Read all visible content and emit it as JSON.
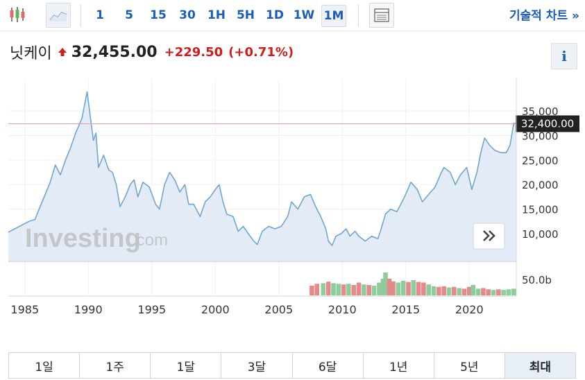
{
  "toolbar": {
    "intervals": [
      {
        "label": "1",
        "active": false
      },
      {
        "label": "5",
        "active": false
      },
      {
        "label": "15",
        "active": false
      },
      {
        "label": "30",
        "active": false
      },
      {
        "label": "1H",
        "active": false
      },
      {
        "label": "5H",
        "active": false
      },
      {
        "label": "1D",
        "active": false
      },
      {
        "label": "1W",
        "active": false
      },
      {
        "label": "1M",
        "active": true
      }
    ],
    "icons": [
      "candlestick-icon",
      "area-chart-icon",
      "table-icon"
    ],
    "technical_chart_label": "기술적 차트 »"
  },
  "quote": {
    "name": "닛케이",
    "direction": "up",
    "price": "32,455.00",
    "change": "+229.50",
    "change_pct": "(+0.71%)",
    "up_color": "#d01c1c",
    "info_label": "i"
  },
  "watermark": {
    "main": "Investing",
    "suffix": ".com"
  },
  "range": {
    "buttons": [
      {
        "label": "1일",
        "active": false
      },
      {
        "label": "1주",
        "active": false
      },
      {
        "label": "1달",
        "active": false
      },
      {
        "label": "3달",
        "active": false
      },
      {
        "label": "6달",
        "active": false
      },
      {
        "label": "1년",
        "active": false
      },
      {
        "label": "5년",
        "active": false
      },
      {
        "label": "최대",
        "active": true
      }
    ]
  },
  "chart_data": {
    "type": "area",
    "title": "",
    "xlabel": "",
    "ylabel": "",
    "x_ticks": [
      "1985",
      "1990",
      "1995",
      "2000",
      "2005",
      "2010",
      "2015",
      "2020"
    ],
    "y_ticks": [
      "10,000",
      "15,000",
      "20,000",
      "25,000",
      "30,000",
      "35,000"
    ],
    "xlim": [
      1983.7,
      2023.7
    ],
    "ylim": [
      4500,
      41500
    ],
    "current_price_label": "32,400.00",
    "current_price": 32400,
    "line_color": "#6fa5d2",
    "fill_color": "#e3ecf6",
    "price_line_color": "#e89aa3",
    "series": [
      {
        "values": [
          [
            1983.7,
            10300
          ],
          [
            1984.2,
            11000
          ],
          [
            1984.8,
            11800
          ],
          [
            1985.3,
            12500
          ],
          [
            1985.8,
            12900
          ],
          [
            1986.2,
            15500
          ],
          [
            1986.6,
            18000
          ],
          [
            1987.0,
            20500
          ],
          [
            1987.4,
            24000
          ],
          [
            1987.8,
            22000
          ],
          [
            1988.2,
            25000
          ],
          [
            1988.6,
            27500
          ],
          [
            1989.0,
            30500
          ],
          [
            1989.5,
            33500
          ],
          [
            1989.9,
            38900
          ],
          [
            1990.2,
            33000
          ],
          [
            1990.4,
            29000
          ],
          [
            1990.6,
            30500
          ],
          [
            1990.8,
            23500
          ],
          [
            1991.2,
            26000
          ],
          [
            1991.6,
            23000
          ],
          [
            1991.9,
            22500
          ],
          [
            1992.2,
            20000
          ],
          [
            1992.5,
            15500
          ],
          [
            1992.9,
            17500
          ],
          [
            1993.3,
            20000
          ],
          [
            1993.6,
            21000
          ],
          [
            1993.9,
            17500
          ],
          [
            1994.3,
            20500
          ],
          [
            1994.8,
            19500
          ],
          [
            1995.3,
            16000
          ],
          [
            1995.6,
            15000
          ],
          [
            1996.0,
            20000
          ],
          [
            1996.4,
            22500
          ],
          [
            1996.8,
            21000
          ],
          [
            1997.2,
            18500
          ],
          [
            1997.6,
            20000
          ],
          [
            1997.9,
            16000
          ],
          [
            1998.3,
            16000
          ],
          [
            1998.8,
            13500
          ],
          [
            1999.2,
            16500
          ],
          [
            1999.6,
            17500
          ],
          [
            2000.0,
            19000
          ],
          [
            2000.3,
            20000
          ],
          [
            2000.6,
            16500
          ],
          [
            2000.9,
            14000
          ],
          [
            2001.4,
            13500
          ],
          [
            2001.8,
            10500
          ],
          [
            2002.2,
            11500
          ],
          [
            2002.6,
            10000
          ],
          [
            2003.0,
            8600
          ],
          [
            2003.3,
            7800
          ],
          [
            2003.7,
            10500
          ],
          [
            2004.2,
            11500
          ],
          [
            2004.7,
            11000
          ],
          [
            2005.2,
            11500
          ],
          [
            2005.7,
            13500
          ],
          [
            2006.0,
            16500
          ],
          [
            2006.5,
            15000
          ],
          [
            2007.0,
            17500
          ],
          [
            2007.5,
            18000
          ],
          [
            2007.9,
            15500
          ],
          [
            2008.3,
            13500
          ],
          [
            2008.7,
            11000
          ],
          [
            2008.9,
            8500
          ],
          [
            2009.2,
            7600
          ],
          [
            2009.5,
            9500
          ],
          [
            2009.9,
            10000
          ],
          [
            2010.3,
            11000
          ],
          [
            2010.6,
            9500
          ],
          [
            2011.0,
            10500
          ],
          [
            2011.3,
            9500
          ],
          [
            2011.8,
            8500
          ],
          [
            2012.3,
            9500
          ],
          [
            2012.8,
            9000
          ],
          [
            2013.0,
            10500
          ],
          [
            2013.4,
            14000
          ],
          [
            2013.8,
            15000
          ],
          [
            2014.3,
            14500
          ],
          [
            2014.9,
            17500
          ],
          [
            2015.4,
            20500
          ],
          [
            2015.9,
            19000
          ],
          [
            2016.3,
            16500
          ],
          [
            2016.8,
            18000
          ],
          [
            2017.3,
            19500
          ],
          [
            2017.8,
            22500
          ],
          [
            2018.0,
            23500
          ],
          [
            2018.5,
            22500
          ],
          [
            2018.9,
            20000
          ],
          [
            2019.3,
            22000
          ],
          [
            2019.8,
            23500
          ],
          [
            2020.2,
            19000
          ],
          [
            2020.6,
            22500
          ],
          [
            2020.9,
            26500
          ],
          [
            2021.2,
            29500
          ],
          [
            2021.6,
            28000
          ],
          [
            2022.0,
            27000
          ],
          [
            2022.5,
            26500
          ],
          [
            2022.9,
            26500
          ],
          [
            2023.2,
            28000
          ],
          [
            2023.5,
            32500
          ],
          [
            2023.7,
            32400
          ]
        ]
      }
    ],
    "volume": {
      "y_tick": "50.0b",
      "ylim": [
        0,
        100
      ],
      "up_color": "#8fcc9d",
      "down_color": "#e38b8b",
      "values": [
        [
          2007.6,
          32,
          "d"
        ],
        [
          2008.0,
          38,
          "d"
        ],
        [
          2008.5,
          40,
          "u"
        ],
        [
          2008.9,
          45,
          "d"
        ],
        [
          2009.3,
          40,
          "u"
        ],
        [
          2009.7,
          38,
          "u"
        ],
        [
          2010.1,
          36,
          "d"
        ],
        [
          2010.5,
          38,
          "u"
        ],
        [
          2010.9,
          34,
          "d"
        ],
        [
          2011.3,
          42,
          "d"
        ],
        [
          2011.7,
          36,
          "u"
        ],
        [
          2012.1,
          34,
          "d"
        ],
        [
          2012.5,
          32,
          "u"
        ],
        [
          2012.9,
          42,
          "u"
        ],
        [
          2013.2,
          55,
          "u"
        ],
        [
          2013.4,
          75,
          "u"
        ],
        [
          2013.7,
          55,
          "d"
        ],
        [
          2014.0,
          46,
          "d"
        ],
        [
          2014.4,
          42,
          "u"
        ],
        [
          2014.8,
          48,
          "u"
        ],
        [
          2015.2,
          44,
          "d"
        ],
        [
          2015.6,
          50,
          "u"
        ],
        [
          2016.0,
          44,
          "d"
        ],
        [
          2016.4,
          42,
          "d"
        ],
        [
          2016.8,
          36,
          "u"
        ],
        [
          2017.2,
          30,
          "u"
        ],
        [
          2017.6,
          28,
          "d"
        ],
        [
          2018.0,
          30,
          "d"
        ],
        [
          2018.4,
          26,
          "u"
        ],
        [
          2018.8,
          28,
          "d"
        ],
        [
          2019.2,
          24,
          "u"
        ],
        [
          2019.6,
          22,
          "d"
        ],
        [
          2020.0,
          28,
          "d"
        ],
        [
          2020.3,
          34,
          "u"
        ],
        [
          2020.7,
          22,
          "u"
        ],
        [
          2021.1,
          24,
          "d"
        ],
        [
          2021.5,
          20,
          "d"
        ],
        [
          2021.9,
          18,
          "u"
        ],
        [
          2022.3,
          20,
          "d"
        ],
        [
          2022.7,
          18,
          "u"
        ],
        [
          2023.1,
          20,
          "u"
        ],
        [
          2023.5,
          22,
          "u"
        ]
      ]
    }
  }
}
